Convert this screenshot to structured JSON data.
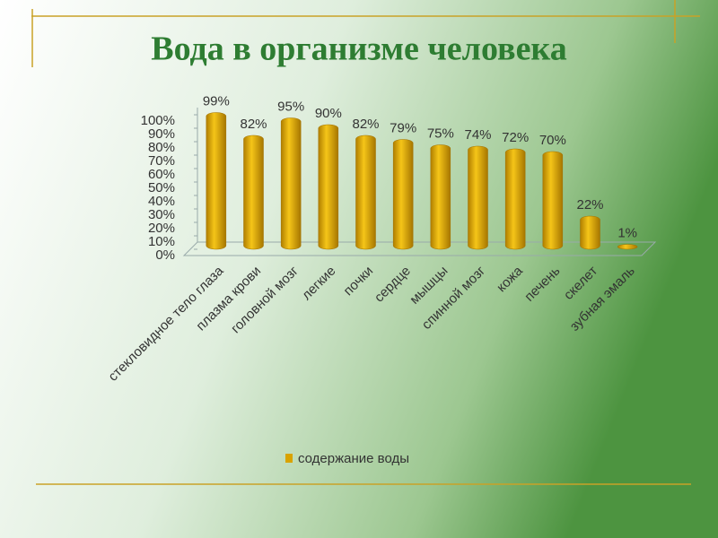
{
  "chart_data": {
    "type": "bar",
    "title": "Вода в организме человека",
    "categories": [
      "стекловидное тело глаза",
      "плазма крови",
      "головной мозг",
      "легкие",
      "почки",
      "сердце",
      "мышцы",
      "спинной мозг",
      "кожа",
      "печень",
      "скелет",
      "зубная эмаль"
    ],
    "series": [
      {
        "name": "содержание воды",
        "color": "#d9a300",
        "values": [
          99,
          82,
          95,
          90,
          82,
          79,
          75,
          74,
          72,
          70,
          22,
          1
        ],
        "value_labels": [
          "99%",
          "82%",
          "95%",
          "90%",
          "82%",
          "79%",
          "75%",
          "74%",
          "72%",
          "70%",
          "22%",
          "1%"
        ]
      }
    ],
    "ylim": [
      0,
      100
    ],
    "yticks": [
      {
        "value": 0,
        "label": "0%"
      },
      {
        "value": 10,
        "label": "10%"
      },
      {
        "value": 20,
        "label": "20%"
      },
      {
        "value": 30,
        "label": "30%"
      },
      {
        "value": 40,
        "label": "40%"
      },
      {
        "value": 50,
        "label": "50%"
      },
      {
        "value": 60,
        "label": "60%"
      },
      {
        "value": 70,
        "label": "70%"
      },
      {
        "value": 80,
        "label": "80%"
      },
      {
        "value": 90,
        "label": "90%"
      },
      {
        "value": 100,
        "label": "100%"
      }
    ],
    "grid": false,
    "legend": "bottom"
  }
}
